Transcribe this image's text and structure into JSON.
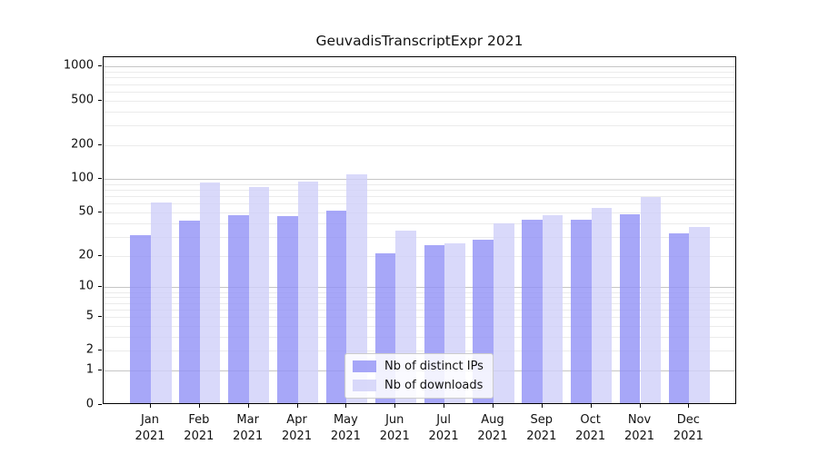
{
  "chart_data": {
    "type": "bar",
    "title": "GeuvadisTranscriptExpr 2021",
    "categories": [
      "Jan 2021",
      "Feb 2021",
      "Mar 2021",
      "Apr 2021",
      "May 2021",
      "Jun 2021",
      "Jul 2021",
      "Aug 2021",
      "Sep 2021",
      "Oct 2021",
      "Nov 2021",
      "Dec 2021"
    ],
    "months": [
      "Jan",
      "Feb",
      "Mar",
      "Apr",
      "May",
      "Jun",
      "Jul",
      "Aug",
      "Sep",
      "Oct",
      "Nov",
      "Dec"
    ],
    "year_label": "2021",
    "series": [
      {
        "name": "Nb of distinct IPs",
        "color": "rgba(145,145,246,0.8)",
        "values": [
          31,
          42,
          47,
          46,
          52,
          21,
          25,
          28,
          43,
          43,
          48,
          32
        ]
      },
      {
        "name": "Nb of downloads",
        "color": "rgba(208,208,249,0.8)",
        "values": [
          61,
          93,
          84,
          94,
          109,
          34,
          26,
          40,
          47,
          55,
          69,
          37
        ]
      }
    ],
    "yscale": "log1p",
    "ylim": [
      0,
      1220
    ],
    "y_ticks": [
      1000,
      500,
      200,
      100,
      50,
      20,
      10,
      5,
      2,
      1,
      0
    ],
    "grid_major_values": [
      1,
      10,
      100,
      1000
    ],
    "grid_minor_values": [
      2,
      3,
      4,
      5,
      6,
      7,
      8,
      9,
      20,
      30,
      40,
      50,
      60,
      70,
      80,
      90,
      200,
      300,
      400,
      500,
      600,
      700,
      800,
      900
    ],
    "grid": "on",
    "legend_position": "lower center",
    "xlabel": "",
    "ylabel": ""
  },
  "colors": {
    "bar_distinct_ips": "rgba(145,145,246,0.8)",
    "bar_downloads": "rgba(208,208,249,0.8)",
    "grid_major": "#c6c6c6",
    "grid_minor": "#ebebeb",
    "axis": "#000000",
    "background": "#ffffff"
  }
}
